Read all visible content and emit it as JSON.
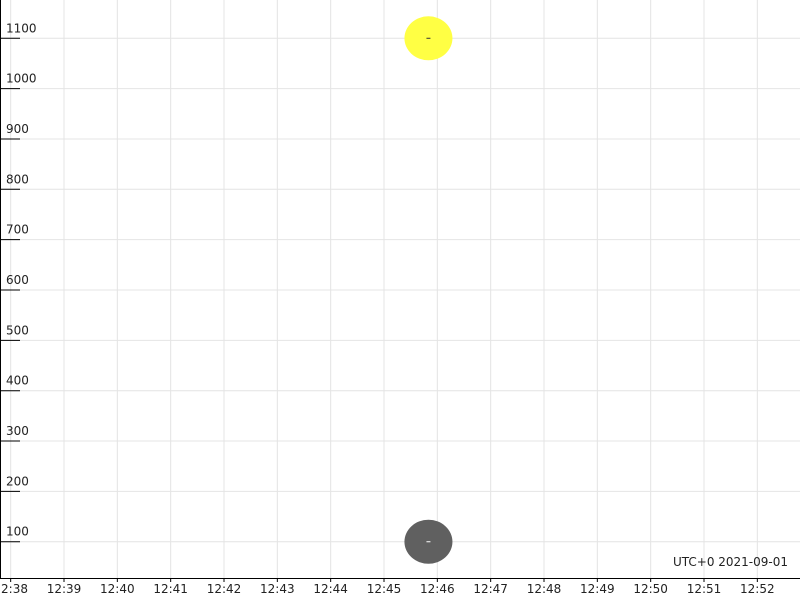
{
  "chart_data": {
    "type": "scatter",
    "title": "",
    "xlabel": "",
    "ylabel": "",
    "x_tick_labels": [
      "12:38",
      "12:39",
      "12:40",
      "12:41",
      "12:42",
      "12:43",
      "12:44",
      "12:45",
      "12:46",
      "12:47",
      "12:48",
      "12:49",
      "12:50",
      "12:51",
      "12:52"
    ],
    "y_ticks": [
      100,
      200,
      300,
      400,
      500,
      600,
      700,
      800,
      900,
      1000,
      1100
    ],
    "xlim": [
      "12:37.8",
      "12:52.8"
    ],
    "ylim": [
      28,
      1176
    ],
    "grid": true,
    "timezone_label": "UTC+0 2021-09-01",
    "points": [
      {
        "x": "12:45:50",
        "y": 1100,
        "color": "#ffff44"
      },
      {
        "x": "12:45:50",
        "y": 100,
        "color": "#606060"
      }
    ]
  }
}
